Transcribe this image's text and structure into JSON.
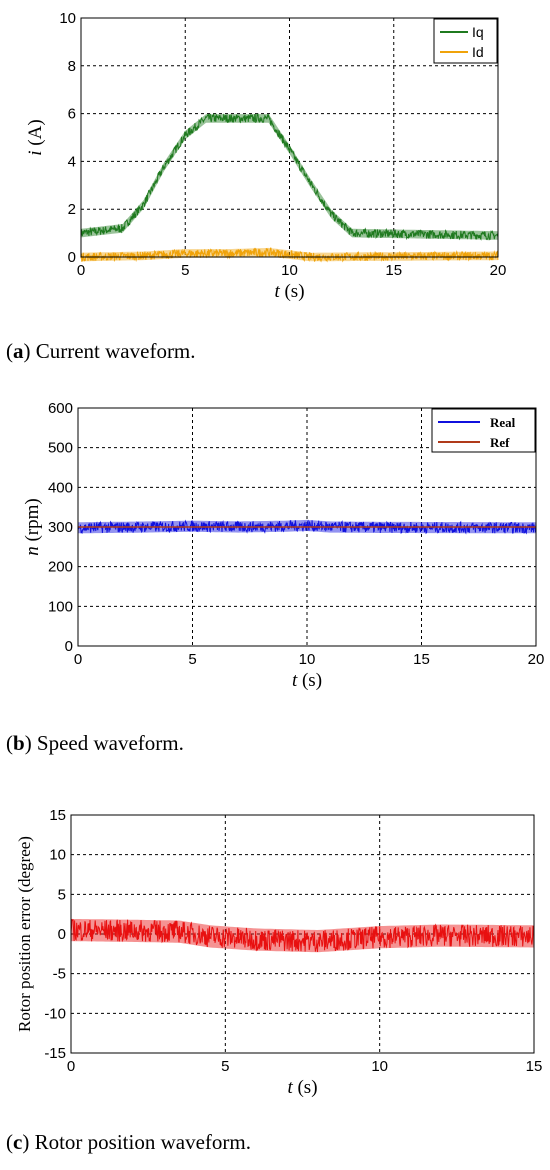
{
  "chart_data": [
    {
      "type": "line",
      "caption_letter": "a",
      "caption_text": ") Current waveform.",
      "xlabel_var": "t",
      "xlabel_unit": " (s)",
      "ylabel_var": "i",
      "ylabel_unit": " (A)",
      "xlim": [
        0,
        20
      ],
      "ylim": [
        0,
        10
      ],
      "xticks": [
        0,
        5,
        10,
        15,
        20
      ],
      "yticks": [
        0,
        2,
        4,
        6,
        8,
        10
      ],
      "grid": true,
      "legend_position": "top-right",
      "series": [
        {
          "name": "Iq",
          "color": "#1f7a1f",
          "band": 0.18,
          "x": [
            0,
            2,
            3,
            4,
            5,
            6,
            9,
            10,
            11,
            12,
            13,
            20
          ],
          "y": [
            1.0,
            1.2,
            2.2,
            3.8,
            5.1,
            5.8,
            5.8,
            4.5,
            3.1,
            1.8,
            1.0,
            0.9
          ]
        },
        {
          "name": "Id",
          "color": "#f0a30a",
          "band": 0.18,
          "x": [
            0,
            3,
            5,
            7,
            9,
            10,
            11,
            20
          ],
          "y": [
            0.0,
            0.05,
            0.15,
            0.15,
            0.2,
            0.1,
            0.0,
            0.05
          ]
        }
      ]
    },
    {
      "type": "line",
      "caption_letter": "b",
      "caption_text": ") Speed waveform.",
      "xlabel_var": "t",
      "xlabel_unit": " (s)",
      "ylabel_var": "n",
      "ylabel_unit": " (rpm)",
      "xlim": [
        0,
        20
      ],
      "ylim": [
        0,
        600
      ],
      "xticks": [
        0,
        5,
        10,
        15,
        20
      ],
      "yticks": [
        0,
        100,
        200,
        300,
        400,
        500,
        600
      ],
      "grid": true,
      "legend_position": "top-right",
      "series": [
        {
          "name": "Real",
          "color": "#1010dd",
          "band": 14,
          "x": [
            0,
            3,
            5,
            7,
            9,
            10,
            11,
            13,
            20
          ],
          "y": [
            298,
            300,
            302,
            300,
            302,
            304,
            300,
            299,
            298
          ]
        },
        {
          "name": "Ref",
          "color": "#b03a1a",
          "band": 0,
          "x": [
            0,
            20
          ],
          "y": [
            300,
            300
          ]
        }
      ]
    },
    {
      "type": "line",
      "caption_letter": "c",
      "caption_text": ") Rotor position waveform.",
      "xlabel_var": "t",
      "xlabel_unit": " (s)",
      "ylabel_var": "",
      "ylabel_unit": "Rotor position error (degree)",
      "xlim": [
        0,
        15
      ],
      "ylim": [
        -15,
        15
      ],
      "xticks": [
        0,
        5,
        10,
        15
      ],
      "yticks": [
        -15,
        -10,
        -5,
        0,
        5,
        10,
        15
      ],
      "grid": true,
      "legend_position": "none",
      "series": [
        {
          "name": "",
          "color": "#e81010",
          "band": 1.4,
          "x": [
            0,
            2,
            3.5,
            4.5,
            6,
            8,
            10,
            12,
            15
          ],
          "y": [
            0.5,
            0.4,
            0.3,
            -0.3,
            -0.7,
            -0.9,
            -0.4,
            -0.2,
            -0.3
          ]
        }
      ]
    }
  ]
}
